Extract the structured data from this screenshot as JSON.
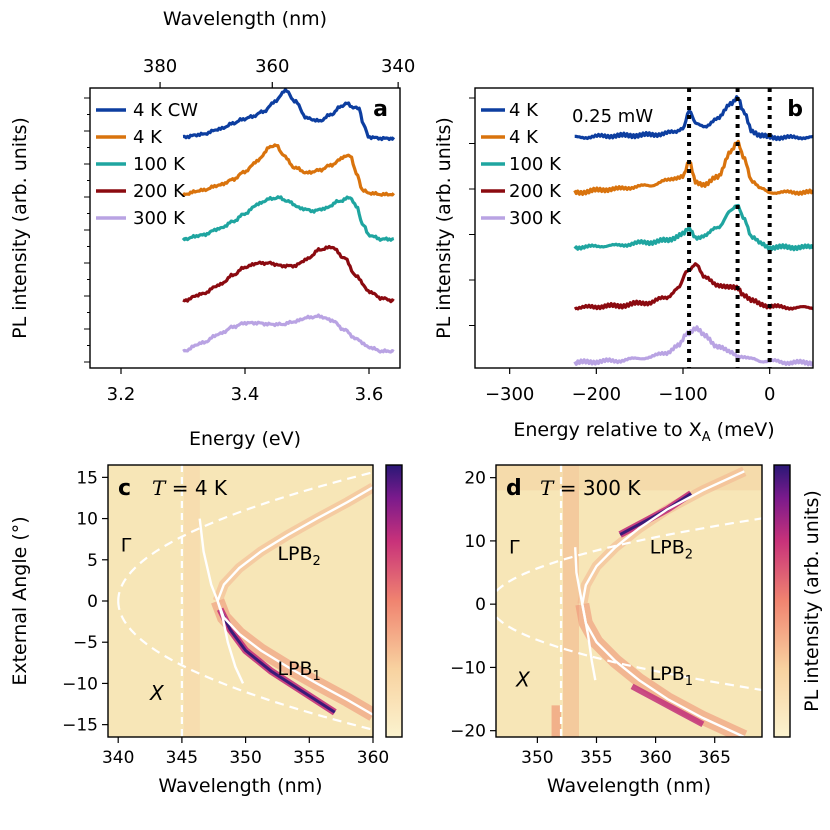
{
  "chart_data": [
    {
      "panel": "a",
      "type": "line",
      "ylabel": "PL intensity (arb. units)",
      "xlabel": "Energy (eV)",
      "xlim": [
        3.15,
        3.65
      ],
      "xticks": [
        3.2,
        3.4,
        3.6
      ],
      "xtick_labels": [
        "3.2",
        "3.4",
        "3.6"
      ],
      "top_axis": {
        "label": "Wavelength (nm)",
        "ticks": [
          "380",
          "360",
          "340"
        ],
        "tick_energies": [
          3.263,
          3.444,
          3.647
        ]
      },
      "legend_position": "top-left",
      "series": [
        {
          "name": "4 K CW",
          "color": "#0d3ea0",
          "offset": 4.1,
          "x": [
            3.3,
            3.33,
            3.36,
            3.38,
            3.395,
            3.41,
            3.43,
            3.45,
            3.465,
            3.48,
            3.5,
            3.52,
            3.54,
            3.555,
            3.565,
            3.575,
            3.585,
            3.59,
            3.6,
            3.62,
            3.64
          ],
          "y": [
            0.02,
            0.06,
            0.14,
            0.22,
            0.28,
            0.32,
            0.4,
            0.56,
            0.72,
            0.56,
            0.3,
            0.26,
            0.36,
            0.48,
            0.52,
            0.46,
            0.44,
            0.22,
            0.02,
            0.0,
            0.0
          ]
        },
        {
          "name": "4 K",
          "color": "#d9730d",
          "offset": 3.1,
          "x": [
            3.3,
            3.33,
            3.36,
            3.38,
            3.4,
            3.42,
            3.44,
            3.45,
            3.46,
            3.48,
            3.5,
            3.52,
            3.54,
            3.56,
            3.57,
            3.58,
            3.59,
            3.6,
            3.62,
            3.64
          ],
          "y": [
            0.0,
            0.06,
            0.14,
            0.22,
            0.34,
            0.5,
            0.7,
            0.74,
            0.6,
            0.4,
            0.32,
            0.36,
            0.44,
            0.56,
            0.58,
            0.3,
            0.06,
            0.02,
            0.0,
            0.0
          ]
        },
        {
          "name": "100 K",
          "color": "#1fa5a0",
          "offset": 2.3,
          "x": [
            3.3,
            3.33,
            3.36,
            3.38,
            3.4,
            3.42,
            3.44,
            3.455,
            3.47,
            3.49,
            3.51,
            3.53,
            3.55,
            3.57,
            3.58,
            3.59,
            3.6,
            3.62,
            3.64
          ],
          "y": [
            0.0,
            0.06,
            0.16,
            0.26,
            0.38,
            0.52,
            0.6,
            0.62,
            0.56,
            0.46,
            0.42,
            0.46,
            0.56,
            0.62,
            0.48,
            0.22,
            0.06,
            0.0,
            0.0
          ]
        },
        {
          "name": "200 K",
          "color": "#8b0a10",
          "offset": 1.2,
          "x": [
            3.3,
            3.33,
            3.36,
            3.38,
            3.4,
            3.42,
            3.44,
            3.46,
            3.48,
            3.5,
            3.52,
            3.54,
            3.56,
            3.58,
            3.6,
            3.62,
            3.64
          ],
          "y": [
            0.0,
            0.1,
            0.24,
            0.38,
            0.5,
            0.56,
            0.56,
            0.52,
            0.52,
            0.62,
            0.76,
            0.8,
            0.64,
            0.36,
            0.14,
            0.04,
            0.0
          ]
        },
        {
          "name": "300 K",
          "color": "#b9a3e3",
          "offset": 0.3,
          "x": [
            3.3,
            3.33,
            3.36,
            3.38,
            3.4,
            3.42,
            3.44,
            3.46,
            3.48,
            3.5,
            3.52,
            3.54,
            3.56,
            3.58,
            3.6,
            3.62,
            3.64
          ],
          "y": [
            0.0,
            0.12,
            0.26,
            0.36,
            0.42,
            0.42,
            0.4,
            0.4,
            0.44,
            0.5,
            0.52,
            0.46,
            0.32,
            0.18,
            0.06,
            0.0,
            0.0
          ]
        }
      ]
    },
    {
      "panel": "b",
      "type": "line",
      "ylabel": "PL intensity (arb. units)",
      "xlabel": "Energy relative to X",
      "xlabel_sub": "A",
      "xlabel_unit": " (meV)",
      "xlim": [
        -340,
        50
      ],
      "xticks": [
        -300,
        -200,
        -100,
        0
      ],
      "xtick_labels": [
        "−300",
        "−200",
        "−100",
        "0"
      ],
      "annotation": "0.25 mW",
      "vlines": [
        -93,
        -37,
        0
      ],
      "legend_position": "top-left",
      "series": [
        {
          "name": "4 K",
          "color": "#0d3ea0",
          "offset": 4.2,
          "x": [
            -225,
            -180,
            -140,
            -110,
            -100,
            -93,
            -85,
            -75,
            -60,
            -45,
            -37,
            -30,
            -20,
            -10,
            0,
            20,
            50
          ],
          "y": [
            0.0,
            0.02,
            0.03,
            0.06,
            0.12,
            0.32,
            0.16,
            0.14,
            0.22,
            0.42,
            0.48,
            0.3,
            0.08,
            0.02,
            0.0,
            0.0,
            0.0
          ]
        },
        {
          "name": "4 K",
          "color": "#d9730d",
          "offset": 3.2,
          "x": [
            -225,
            -180,
            -140,
            -120,
            -100,
            -93,
            -85,
            -75,
            -60,
            -45,
            -37,
            -30,
            -20,
            -10,
            0,
            20,
            50
          ],
          "y": [
            0.0,
            0.04,
            0.08,
            0.14,
            0.2,
            0.36,
            0.12,
            0.1,
            0.18,
            0.5,
            0.6,
            0.42,
            0.14,
            0.04,
            0.0,
            0.0,
            0.0
          ]
        },
        {
          "name": "100 K",
          "color": "#1fa5a0",
          "offset": 2.2,
          "x": [
            -225,
            -180,
            -140,
            -120,
            -100,
            -93,
            -85,
            -75,
            -60,
            -45,
            -37,
            -30,
            -20,
            -10,
            0,
            20,
            50
          ],
          "y": [
            0.0,
            0.02,
            0.06,
            0.08,
            0.16,
            0.22,
            0.12,
            0.14,
            0.24,
            0.44,
            0.5,
            0.36,
            0.12,
            0.04,
            0.0,
            0.0,
            0.0
          ]
        },
        {
          "name": "200 K",
          "color": "#8b0a10",
          "offset": 1.1,
          "x": [
            -225,
            -180,
            -140,
            -120,
            -105,
            -95,
            -85,
            -75,
            -60,
            -45,
            -37,
            -30,
            -20,
            -10,
            0,
            20,
            50
          ],
          "y": [
            0.0,
            0.02,
            0.06,
            0.12,
            0.24,
            0.44,
            0.54,
            0.36,
            0.28,
            0.24,
            0.24,
            0.16,
            0.08,
            0.04,
            0.02,
            0.0,
            0.0
          ]
        },
        {
          "name": "300 K",
          "color": "#b9a3e3",
          "offset": 0.1,
          "x": [
            -225,
            -180,
            -140,
            -120,
            -105,
            -95,
            -85,
            -75,
            -60,
            -45,
            -35,
            -20,
            -10,
            0,
            20,
            50
          ],
          "y": [
            0.0,
            0.02,
            0.06,
            0.12,
            0.2,
            0.36,
            0.42,
            0.32,
            0.2,
            0.12,
            0.08,
            0.04,
            0.02,
            0.02,
            0.0,
            0.0
          ]
        }
      ]
    },
    {
      "panel": "c",
      "type": "heatmap",
      "title": "T = 4 K",
      "title_var": "T",
      "title_rest": " = 4 K",
      "xlabel": "Wavelength (nm)",
      "ylabel": "External Angle (°)",
      "xlim": [
        339.2,
        360
      ],
      "ylim": [
        -16.5,
        16.5
      ],
      "xticks": [
        340,
        345,
        350,
        355,
        360
      ],
      "xtick_labels": [
        "340",
        "345",
        "350",
        "355",
        "360"
      ],
      "yticks": [
        15,
        10,
        5,
        0,
        -5,
        -10,
        -15
      ],
      "ytick_labels": [
        "15",
        "10",
        "5",
        "0",
        "−5",
        "−10",
        "−15"
      ],
      "exciton_wavelength": 345,
      "exciton_label": "X",
      "gamma_label": "Γ",
      "lpb2_label": "LPB",
      "lpb2_sub": "2",
      "lpb1_label": "LPB",
      "lpb1_sub": "1",
      "photon_vertex": 340,
      "photon_curvature": 0.082,
      "lpb_vertex": 347.8,
      "lpb_branch_top": [
        [
          347.8,
          0
        ],
        [
          348.3,
          -2
        ],
        [
          349.5,
          -4
        ],
        [
          351.2,
          -6
        ],
        [
          353.3,
          -8
        ],
        [
          355.6,
          -10
        ],
        [
          358,
          -12
        ],
        [
          360,
          -13.8
        ]
      ],
      "lpb_branch_bottom": [
        [
          347.8,
          0
        ],
        [
          348.3,
          2
        ],
        [
          349.5,
          4
        ],
        [
          351.2,
          6
        ],
        [
          353.3,
          8
        ],
        [
          355.6,
          10
        ],
        [
          358,
          12
        ],
        [
          360,
          13.8
        ]
      ],
      "mirror_branch": [
        [
          346.4,
          10
        ],
        [
          346.7,
          6
        ],
        [
          347.3,
          2
        ],
        [
          347.8,
          0
        ],
        [
          348.2,
          -2
        ],
        [
          348.6,
          -5
        ],
        [
          349.2,
          -8
        ],
        [
          349.8,
          -10
        ]
      ],
      "bright_arc": [
        [
          348,
          -1
        ],
        [
          348.8,
          -3.5
        ],
        [
          350,
          -6
        ],
        [
          352,
          -8.5
        ],
        [
          354.5,
          -11
        ],
        [
          357,
          -13.5
        ]
      ]
    },
    {
      "panel": "d",
      "type": "heatmap",
      "title": "T = 300 K",
      "title_var": "T",
      "title_rest": " = 300 K",
      "xlabel": "Wavelength (nm)",
      "xlim": [
        346.5,
        369
      ],
      "ylim": [
        -21,
        22
      ],
      "xticks": [
        350,
        355,
        360,
        365
      ],
      "xtick_labels": [
        "350",
        "355",
        "360",
        "365"
      ],
      "yticks": [
        20,
        10,
        0,
        -10,
        -20
      ],
      "ytick_labels": [
        "20",
        "10",
        "0",
        "−10",
        "−20"
      ],
      "exciton_wavelength": 352,
      "exciton_label": "X",
      "gamma_label": "Γ",
      "lpb2_label": "LPB",
      "lpb2_sub": "2",
      "lpb1_label": "LPB",
      "lpb1_sub": "1",
      "colorbar_label": "PL intensity (arb. units)",
      "photon_vertex": 346,
      "photon_curvature": 0.125,
      "lpb_vertex": 353.8,
      "lpb_branch_top": [
        [
          353.8,
          0
        ],
        [
          354.1,
          -3
        ],
        [
          355,
          -6
        ],
        [
          356.6,
          -9
        ],
        [
          358.6,
          -12
        ],
        [
          361,
          -15
        ],
        [
          364,
          -18
        ],
        [
          367.5,
          -21
        ]
      ],
      "lpb_branch_bottom": [
        [
          353.8,
          0
        ],
        [
          354.1,
          3
        ],
        [
          355,
          6
        ],
        [
          356.6,
          9
        ],
        [
          358.6,
          12
        ],
        [
          361,
          15
        ],
        [
          364,
          18
        ],
        [
          367.5,
          21
        ]
      ],
      "mirror_branch": [
        [
          353.2,
          9
        ],
        [
          353.3,
          5
        ],
        [
          353.6,
          2
        ],
        [
          353.8,
          0
        ],
        [
          354.0,
          -2
        ],
        [
          354.3,
          -5
        ],
        [
          354.6,
          -9
        ],
        [
          354.9,
          -12
        ]
      ],
      "bright_arc": [
        [
          357,
          11
        ],
        [
          359,
          13
        ],
        [
          361,
          15
        ],
        [
          363,
          17.5
        ]
      ],
      "bright_arc2": [
        [
          358,
          -13
        ],
        [
          360,
          -15
        ],
        [
          362,
          -17
        ],
        [
          364,
          -19
        ]
      ]
    }
  ]
}
